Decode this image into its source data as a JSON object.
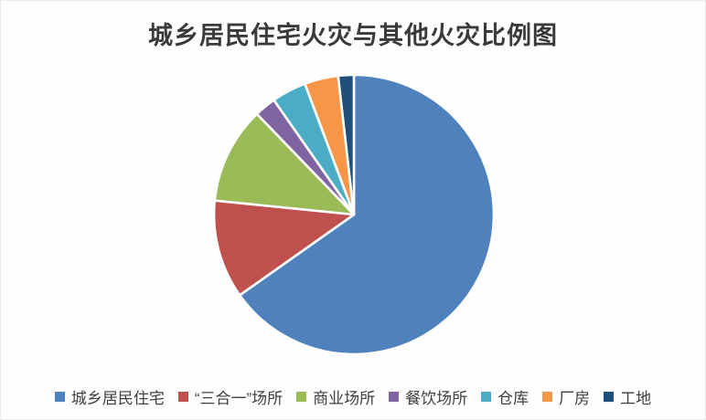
{
  "title": "城乡居民住宅火灾与其他火灾比例图",
  "chart_data": {
    "type": "pie",
    "title": "城乡居民住宅火灾与其他火灾比例图",
    "start_angle_deg": 0,
    "direction": "clockwise",
    "legend_position": "bottom",
    "background_color": "#fefefe",
    "title_color": "#3a3a3a",
    "legend_text_color": "#3f3f3f",
    "slice_gap_color": "#ffffff",
    "slices": [
      {
        "label": "城乡居民住宅",
        "value_pct": 65.2,
        "color": "#4F81BD"
      },
      {
        "label": "“三合一”场所",
        "value_pct": 11.4,
        "color": "#C0504D"
      },
      {
        "label": "商业场所",
        "value_pct": 11.2,
        "color": "#9BBB59"
      },
      {
        "label": "餐饮场所",
        "value_pct": 2.5,
        "color": "#8064A2"
      },
      {
        "label": "仓库",
        "value_pct": 4.0,
        "color": "#4BACC6"
      },
      {
        "label": "厂房",
        "value_pct": 3.9,
        "color": "#F79646"
      },
      {
        "label": "工地",
        "value_pct": 1.8,
        "color": "#1F4E79"
      }
    ]
  }
}
